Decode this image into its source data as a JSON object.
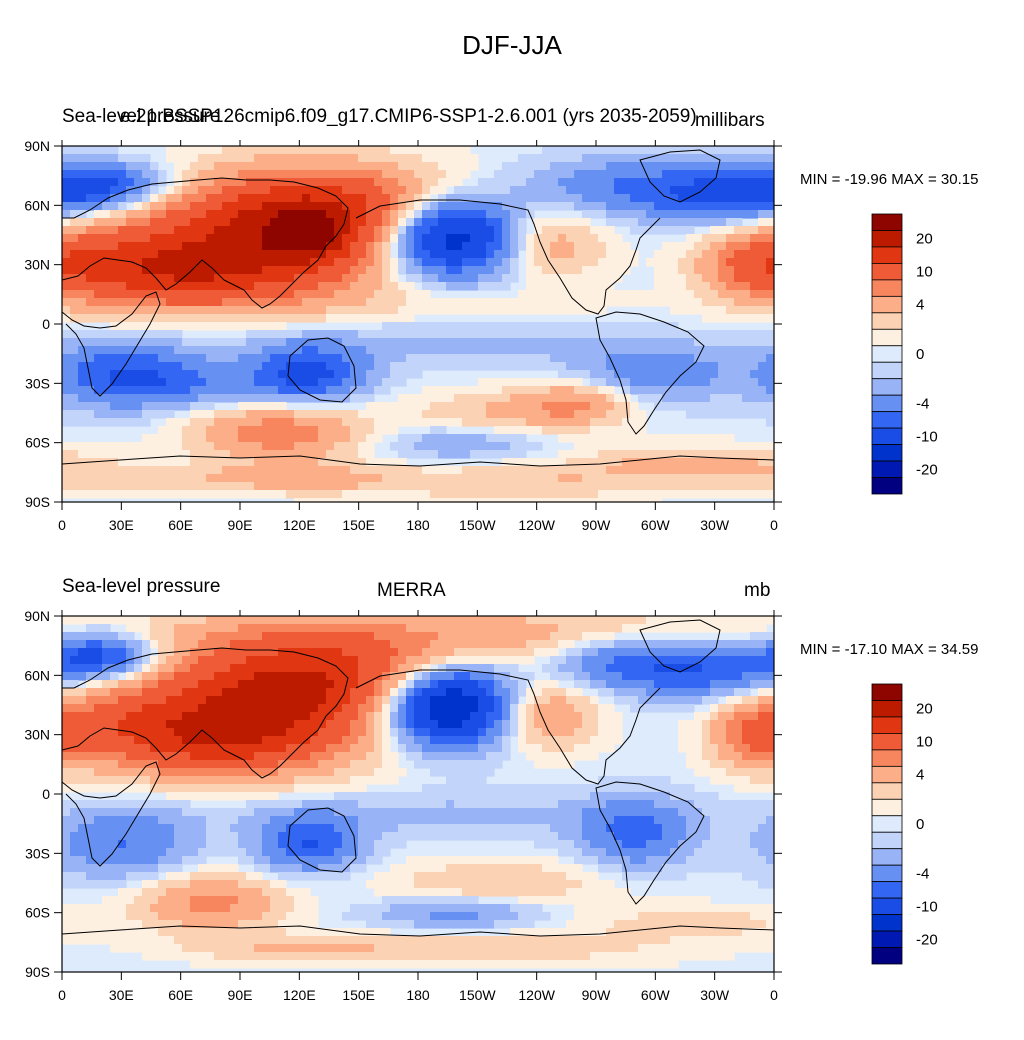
{
  "title": "DJF-JJA",
  "colors": [
    "#000080",
    "#0019b3",
    "#0033cc",
    "#1a4de6",
    "#3366f2",
    "#6690f2",
    "#99b3f7",
    "#c2d4fa",
    "#deebfd",
    "#fdf0e1",
    "#fcd2b5",
    "#fbae88",
    "#f7855e",
    "#ef5b37",
    "#e03611",
    "#bd1b00",
    "#8e0500"
  ],
  "charts": [
    {
      "left_title": "Sea-level pressure",
      "center_title": "e.21.BSSP126cmip6.f09_g17.CMIP6-SSP1-2.6.001 (yrs 2035-2059)",
      "right_title": "millibars",
      "minmax": "MIN = -19.96 MAX =  30.15"
    },
    {
      "left_title": "Sea-level pressure",
      "center_title": "MERRA",
      "right_title": "mb",
      "minmax": "MIN = -17.10 MAX =  34.59"
    }
  ],
  "chart_data": [
    {
      "type": "heatmap",
      "title": "DJF-JJA",
      "subtitle": "e.21.BSSP126cmip6.f09_g17.CMIP6-SSP1-2.6.001 (yrs 2035-2059)",
      "variable": "Sea-level pressure",
      "units": "millibars",
      "min": -19.96,
      "max": 30.15,
      "xlim": [
        0,
        360
      ],
      "ylim": [
        -90,
        90
      ],
      "x_ticks": [
        "0",
        "30E",
        "60E",
        "90E",
        "120E",
        "150E",
        "180",
        "150W",
        "120W",
        "90W",
        "60W",
        "30W",
        "0"
      ],
      "y_ticks": [
        "90N",
        "60N",
        "30N",
        "0",
        "30S",
        "60S",
        "90S"
      ],
      "colorbar_labels": [
        "20",
        "10",
        "4",
        "0",
        "-4",
        "-10",
        "-20"
      ]
    },
    {
      "type": "heatmap",
      "title": "DJF-JJA",
      "subtitle": "MERRA",
      "variable": "Sea-level pressure",
      "units": "mb",
      "min": -17.1,
      "max": 34.59,
      "xlim": [
        0,
        360
      ],
      "ylim": [
        -90,
        90
      ],
      "x_ticks": [
        "0",
        "30E",
        "60E",
        "90E",
        "120E",
        "150E",
        "180",
        "150W",
        "120W",
        "90W",
        "60W",
        "30W",
        "0"
      ],
      "y_ticks": [
        "90N",
        "60N",
        "30N",
        "0",
        "30S",
        "60S",
        "90S"
      ],
      "colorbar_labels": [
        "20",
        "10",
        "4",
        "0",
        "-4",
        "-10",
        "-20"
      ]
    }
  ]
}
